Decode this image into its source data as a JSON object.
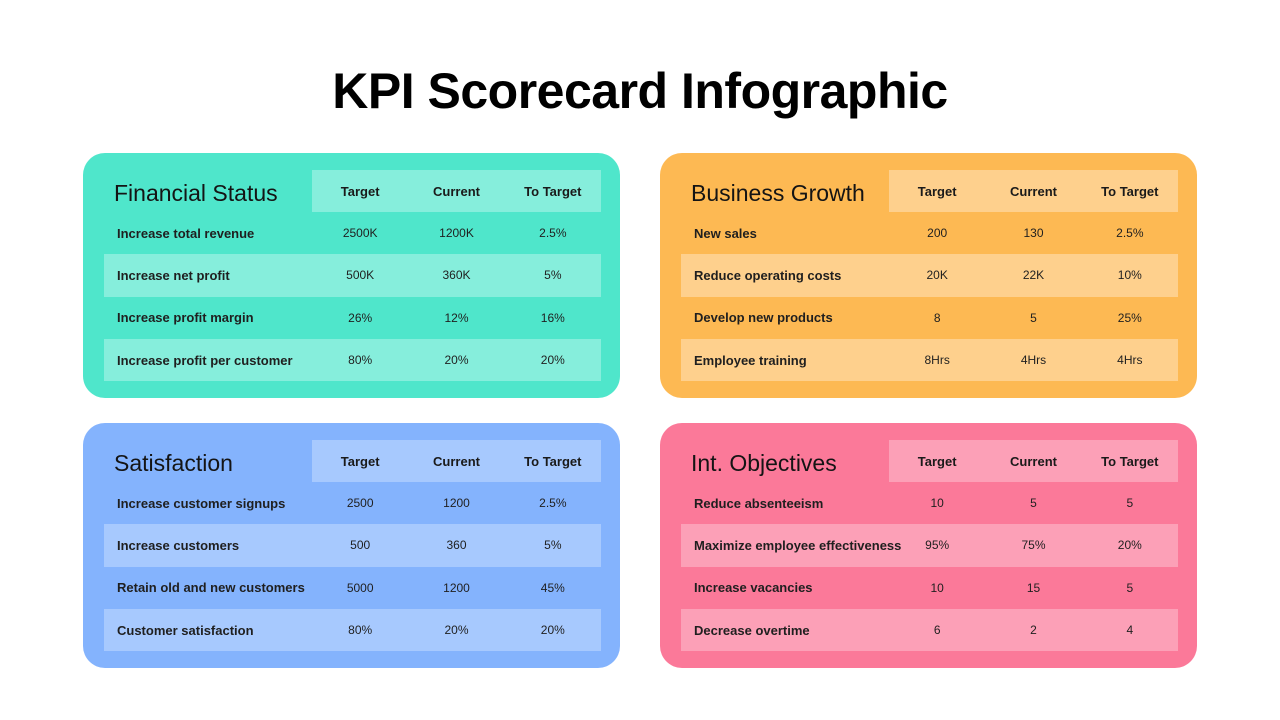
{
  "title": "KPI Scorecard Infographic",
  "theme": {
    "financial": {
      "base": "#4fe6cb",
      "light": "#86eedc"
    },
    "growth": {
      "base": "#fdb953",
      "light": "#fed08d"
    },
    "satisfaction": {
      "base": "#84b3fd",
      "light": "#a7c9fe"
    },
    "objectives": {
      "base": "#fb7999",
      "light": "#fca0b7"
    }
  },
  "cards": [
    {
      "key": "financial",
      "title": "Financial Status",
      "headers": [
        "Target",
        "Current",
        "To Target"
      ],
      "rows": [
        {
          "label": "Increase total revenue",
          "target": "2500K",
          "current": "1200K",
          "to_target": "2.5%"
        },
        {
          "label": "Increase net profit",
          "target": "500K",
          "current": "360K",
          "to_target": "5%"
        },
        {
          "label": "Increase profit margin",
          "target": "26%",
          "current": "12%",
          "to_target": "16%"
        },
        {
          "label": "Increase profit per customer",
          "target": "80%",
          "current": "20%",
          "to_target": "20%"
        }
      ]
    },
    {
      "key": "growth",
      "title": "Business Growth",
      "headers": [
        "Target",
        "Current",
        "To Target"
      ],
      "rows": [
        {
          "label": "New sales",
          "target": "200",
          "current": "130",
          "to_target": "2.5%"
        },
        {
          "label": "Reduce operating costs",
          "target": "20K",
          "current": "22K",
          "to_target": "10%"
        },
        {
          "label": "Develop new products",
          "target": "8",
          "current": "5",
          "to_target": "25%"
        },
        {
          "label": "Employee training",
          "target": "8Hrs",
          "current": "4Hrs",
          "to_target": "4Hrs"
        }
      ]
    },
    {
      "key": "satisfaction",
      "title": "Satisfaction",
      "headers": [
        "Target",
        "Current",
        "To Target"
      ],
      "rows": [
        {
          "label": "Increase customer signups",
          "target": "2500",
          "current": "1200",
          "to_target": "2.5%"
        },
        {
          "label": "Increase customers",
          "target": "500",
          "current": "360",
          "to_target": "5%"
        },
        {
          "label": "Retain old and new customers",
          "target": "5000",
          "current": "1200",
          "to_target": "45%"
        },
        {
          "label": "Customer satisfaction",
          "target": "80%",
          "current": "20%",
          "to_target": "20%"
        }
      ]
    },
    {
      "key": "objectives",
      "title": "Int. Objectives",
      "headers": [
        "Target",
        "Current",
        "To Target"
      ],
      "rows": [
        {
          "label": "Reduce absenteeism",
          "target": "10",
          "current": "5",
          "to_target": "5"
        },
        {
          "label": "Maximize employee effectiveness",
          "target": "95%",
          "current": "75%",
          "to_target": "20%"
        },
        {
          "label": "Increase vacancies",
          "target": "10",
          "current": "15",
          "to_target": "5"
        },
        {
          "label": "Decrease overtime",
          "target": "6",
          "current": "2",
          "to_target": "4"
        }
      ]
    }
  ]
}
